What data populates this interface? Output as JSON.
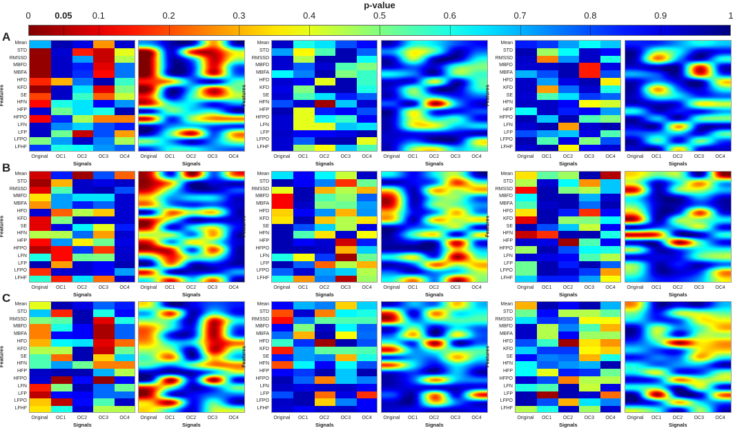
{
  "chart_data": {
    "type": "heatmap",
    "title": "p-value",
    "colorbar": {
      "colormap": "jet-reversed",
      "range": [
        0,
        1
      ],
      "tick_labels": [
        "0",
        "0.05",
        "0.1",
        "0.2",
        "0.3",
        "0.4",
        "0.5",
        "0.6",
        "0.7",
        "0.8",
        "0.9",
        "1"
      ],
      "tick_values": [
        0,
        0.05,
        0.1,
        0.2,
        0.3,
        0.4,
        0.5,
        0.6,
        0.7,
        0.8,
        0.9,
        1
      ],
      "bold_tick": "0.05"
    },
    "xlabel": "Signals",
    "ylabel": "Features",
    "signals": [
      "Original",
      "OC1",
      "OC2",
      "OC3",
      "OC4"
    ],
    "features": [
      "Mean",
      "STD",
      "RMSSD",
      "MBFD",
      "MBFA",
      "HFD",
      "KFD",
      "SE",
      "HFN",
      "HFP",
      "HFPO",
      "LFN",
      "LFP",
      "LFPO",
      "LFHF"
    ],
    "row_labels": [
      "A",
      "B",
      "C"
    ],
    "panels": [
      {
        "row": "A",
        "col": 1,
        "values": [
          [
            0.7,
            0.95,
            0.9,
            0.27,
            0.92
          ],
          [
            0.02,
            0.92,
            0.15,
            0.07,
            0.4
          ],
          [
            0.02,
            0.93,
            0.72,
            0.07,
            0.45
          ],
          [
            0.02,
            0.93,
            0.85,
            0.1,
            0.76
          ],
          [
            0.02,
            0.93,
            0.83,
            0.13,
            0.76
          ],
          [
            0.16,
            0.3,
            0.76,
            0.95,
            0.57
          ],
          [
            0.02,
            0.93,
            0.65,
            0.1,
            0.5
          ],
          [
            0.19,
            0.93,
            0.57,
            0.22,
            0.43
          ],
          [
            0.13,
            0.6,
            0.65,
            0.88,
            0.73
          ],
          [
            0.92,
            0.52,
            0.65,
            0.6,
            0.95
          ],
          [
            0.12,
            0.84,
            0.46,
            0.25,
            0.25
          ],
          [
            0.93,
            0.74,
            0.67,
            0.8,
            0.85
          ],
          [
            0.93,
            0.52,
            0.07,
            0.8,
            0.28
          ],
          [
            0.5,
            0.72,
            0.93,
            0.75,
            0.46
          ],
          [
            0.82,
            0.6,
            0.62,
            0.73,
            0.78
          ]
        ]
      },
      {
        "row": "A",
        "col": 2,
        "values": [
          [
            0.93,
            0.6,
            0.65,
            0.8,
            0.87
          ],
          [
            0.72,
            0.37,
            0.55,
            0.95,
            0.78
          ],
          [
            0.92,
            0.45,
            0.95,
            0.95,
            0.62
          ],
          [
            0.92,
            0.78,
            0.92,
            0.55,
            0.5
          ],
          [
            0.63,
            0.75,
            0.95,
            0.5,
            0.57
          ],
          [
            0.92,
            0.88,
            0.4,
            0.95,
            0.57
          ],
          [
            0.9,
            0.5,
            0.95,
            0.95,
            0.6
          ],
          [
            0.92,
            0.55,
            0.65,
            0.85,
            0.78
          ],
          [
            0.8,
            0.92,
            0.03,
            0.68,
            0.92
          ],
          [
            0.95,
            0.4,
            0.85,
            0.88,
            0.8
          ],
          [
            0.92,
            0.4,
            0.63,
            0.57,
            0.88
          ],
          [
            0.92,
            0.4,
            0.4,
            0.68,
            0.65
          ],
          [
            0.93,
            0.88,
            0.88,
            0.9,
            0.95
          ],
          [
            0.92,
            0.78,
            0.95,
            0.95,
            0.4
          ],
          [
            0.92,
            0.47,
            0.38,
            0.68,
            0.55
          ]
        ]
      },
      {
        "row": "A",
        "col": 3,
        "values": [
          [
            0.85,
            0.82,
            0.72,
            0.62,
            0.68
          ],
          [
            0.95,
            0.47,
            0.62,
            0.93,
            0.87
          ],
          [
            0.93,
            0.25,
            0.73,
            0.93,
            0.6
          ],
          [
            0.92,
            0.93,
            0.95,
            0.15,
            0.9
          ],
          [
            0.7,
            0.8,
            0.95,
            0.15,
            0.8
          ],
          [
            0.93,
            0.72,
            0.9,
            0.95,
            0.36
          ],
          [
            0.93,
            0.28,
            0.77,
            0.92,
            0.6
          ],
          [
            0.92,
            0.55,
            0.65,
            0.82,
            0.78
          ],
          [
            0.93,
            0.93,
            0.88,
            0.38,
            0.42
          ],
          [
            0.62,
            0.93,
            0.85,
            0.88,
            0.72
          ],
          [
            0.95,
            0.68,
            0.95,
            0.55,
            0.5
          ],
          [
            0.92,
            0.95,
            0.28,
            0.92,
            0.95
          ],
          [
            0.8,
            0.72,
            0.68,
            0.9,
            0.55
          ],
          [
            0.95,
            0.55,
            0.9,
            0.5,
            0.8
          ],
          [
            0.92,
            0.95,
            0.37,
            0.88,
            0.92
          ]
        ]
      },
      {
        "row": "B",
        "col": 1,
        "values": [
          [
            0.08,
            0.85,
            0.03,
            0.8,
            0.22
          ],
          [
            0.03,
            0.3,
            0.93,
            0.9,
            0.93
          ],
          [
            0.1,
            0.55,
            0.93,
            0.95,
            0.8
          ],
          [
            0.35,
            0.72,
            0.65,
            0.65,
            0.92
          ],
          [
            0.27,
            0.72,
            0.85,
            0.78,
            0.92
          ],
          [
            0.92,
            0.22,
            0.45,
            0.32,
            0.92
          ],
          [
            0.1,
            0.5,
            0.95,
            0.92,
            0.92
          ],
          [
            0.1,
            0.9,
            0.63,
            0.4,
            0.85
          ],
          [
            0.45,
            0.45,
            0.77,
            0.28,
            0.92
          ],
          [
            0.13,
            0.73,
            0.36,
            0.52,
            0.9
          ],
          [
            0.05,
            0.13,
            0.82,
            0.18,
            0.92
          ],
          [
            0.6,
            0.13,
            0.52,
            0.5,
            0.93
          ],
          [
            0.95,
            0.28,
            0.92,
            0.88,
            0.95
          ],
          [
            0.17,
            0.92,
            0.92,
            0.88,
            0.72
          ],
          [
            0.58,
            0.15,
            0.65,
            0.23,
            0.92
          ]
        ]
      },
      {
        "row": "B",
        "col": 2,
        "values": [
          [
            0.65,
            0.88,
            0.63,
            0.43,
            0.93
          ],
          [
            0.95,
            0.88,
            0.75,
            0.17,
            0.52
          ],
          [
            0.4,
            0.95,
            0.3,
            0.45,
            0.3
          ],
          [
            0.12,
            0.95,
            0.55,
            0.48,
            0.78
          ],
          [
            0.12,
            0.93,
            0.5,
            0.52,
            0.72
          ],
          [
            0.33,
            0.88,
            0.73,
            0.3,
            0.73
          ],
          [
            0.35,
            0.95,
            0.32,
            0.45,
            0.35
          ],
          [
            0.95,
            0.8,
            0.67,
            0.45,
            0.9
          ],
          [
            0.95,
            0.55,
            0.35,
            0.92,
            0.38
          ],
          [
            0.95,
            0.88,
            0.92,
            0.08,
            0.85
          ],
          [
            0.95,
            0.95,
            0.93,
            0.3,
            0.67
          ],
          [
            0.6,
            0.38,
            0.82,
            0.03,
            0.52
          ],
          [
            0.95,
            0.78,
            0.22,
            0.45,
            0.3
          ],
          [
            0.78,
            0.92,
            0.72,
            0.67,
            0.45
          ],
          [
            0.6,
            0.27,
            0.75,
            0.05,
            0.47
          ]
        ]
      },
      {
        "row": "B",
        "col": 3,
        "values": [
          [
            0.35,
            0.53,
            0.47,
            0.95,
            0.05
          ],
          [
            0.45,
            0.92,
            0.62,
            0.27,
            0.68
          ],
          [
            0.13,
            0.95,
            0.5,
            0.45,
            0.68
          ],
          [
            0.62,
            0.95,
            0.95,
            0.7,
            0.92
          ],
          [
            0.55,
            0.93,
            0.95,
            0.77,
            0.95
          ],
          [
            0.35,
            0.95,
            0.85,
            0.17,
            0.87
          ],
          [
            0.1,
            0.95,
            0.48,
            0.5,
            0.63
          ],
          [
            0.95,
            0.8,
            0.68,
            0.43,
            0.88
          ],
          [
            0.07,
            0.17,
            0.95,
            0.95,
            0.6
          ],
          [
            0.92,
            0.9,
            0.03,
            0.55,
            0.88
          ],
          [
            0.47,
            0.95,
            0.8,
            0.62,
            0.6
          ],
          [
            0.92,
            0.9,
            0.88,
            0.55,
            0.45
          ],
          [
            0.52,
            0.95,
            0.85,
            0.95,
            0.78
          ],
          [
            0.52,
            0.95,
            0.92,
            0.82,
            0.28
          ],
          [
            0.67,
            0.85,
            0.85,
            0.72,
            0.38
          ]
        ]
      },
      {
        "row": "C",
        "col": 1,
        "values": [
          [
            0.4,
            0.95,
            0.9,
            0.78,
            0.85
          ],
          [
            0.68,
            0.16,
            0.95,
            0.6,
            0.87
          ],
          [
            0.5,
            0.54,
            0.95,
            0.1,
            0.6
          ],
          [
            0.25,
            0.6,
            0.88,
            0.04,
            0.78
          ],
          [
            0.25,
            0.87,
            0.88,
            0.04,
            0.78
          ],
          [
            0.3,
            0.63,
            0.65,
            0.1,
            0.23
          ],
          [
            0.45,
            0.45,
            0.95,
            0.07,
            0.52
          ],
          [
            0.55,
            0.23,
            0.95,
            0.33,
            0.67
          ],
          [
            0.55,
            0.72,
            0.52,
            0.25,
            0.25
          ],
          [
            0.93,
            0.95,
            0.95,
            0.7,
            0.45
          ],
          [
            0.92,
            0.03,
            0.87,
            0.02,
            0.87
          ],
          [
            0.15,
            0.5,
            0.95,
            0.77,
            0.52
          ],
          [
            0.06,
            0.87,
            0.88,
            0.77,
            0.77
          ],
          [
            0.32,
            0.06,
            0.87,
            0.55,
            0.93
          ],
          [
            0.35,
            0.6,
            0.92,
            0.45,
            0.45
          ]
        ]
      },
      {
        "row": "C",
        "col": 2,
        "values": [
          [
            0.88,
            0.7,
            0.75,
            0.33,
            0.67
          ],
          [
            0.2,
            0.92,
            0.25,
            0.63,
            0.6
          ],
          [
            0.13,
            0.75,
            0.53,
            0.55,
            0.55
          ],
          [
            0.88,
            0.5,
            0.93,
            0.63,
            0.78
          ],
          [
            0.77,
            0.3,
            0.95,
            0.38,
            0.77
          ],
          [
            0.57,
            0.83,
            0.03,
            0.95,
            0.8
          ],
          [
            0.15,
            0.72,
            0.53,
            0.53,
            0.55
          ],
          [
            0.85,
            0.72,
            0.75,
            0.3,
            0.6
          ],
          [
            0.2,
            0.63,
            0.88,
            0.62,
            0.8
          ],
          [
            0.88,
            0.82,
            0.95,
            0.68,
            0.95
          ],
          [
            0.95,
            0.78,
            0.25,
            0.68,
            0.75
          ],
          [
            0.93,
            0.9,
            0.93,
            0.93,
            0.88
          ],
          [
            0.8,
            0.95,
            0.23,
            0.9,
            0.17
          ],
          [
            0.93,
            0.95,
            0.33,
            0.75,
            0.88
          ],
          [
            0.92,
            0.88,
            0.92,
            0.93,
            0.88
          ]
        ]
      },
      {
        "row": "C",
        "col": 3,
        "values": [
          [
            0.3,
            0.95,
            0.88,
            0.95,
            0.7
          ],
          [
            0.52,
            0.87,
            0.45,
            0.45,
            0.53
          ],
          [
            0.65,
            0.83,
            0.8,
            0.38,
            0.38
          ],
          [
            0.93,
            0.45,
            0.75,
            0.55,
            0.3
          ],
          [
            0.93,
            0.45,
            0.88,
            0.47,
            0.47
          ],
          [
            0.8,
            0.57,
            0.03,
            0.35,
            0.27
          ],
          [
            0.67,
            0.82,
            0.82,
            0.37,
            0.33
          ],
          [
            0.87,
            0.75,
            0.77,
            0.3,
            0.6
          ],
          [
            0.62,
            0.78,
            0.73,
            0.7,
            0.95
          ],
          [
            0.62,
            0.4,
            0.85,
            0.83,
            0.52
          ],
          [
            0.92,
            0.8,
            0.25,
            0.45,
            0.45
          ],
          [
            0.6,
            0.55,
            0.95,
            0.43,
            0.9
          ],
          [
            0.95,
            0.03,
            0.95,
            0.92,
            0.23
          ],
          [
            0.95,
            0.8,
            0.3,
            0.65,
            0.75
          ],
          [
            0.45,
            0.6,
            0.93,
            0.47,
            0.92
          ]
        ]
      }
    ]
  }
}
